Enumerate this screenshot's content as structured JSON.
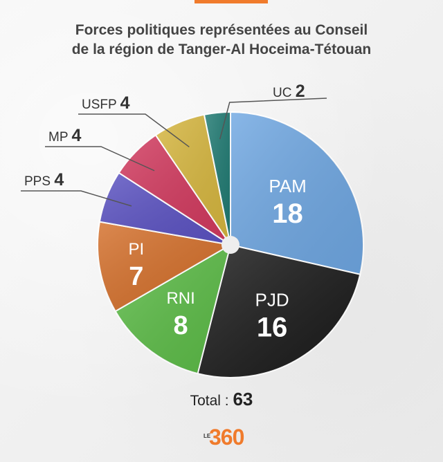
{
  "title": {
    "line1": "Forces politiques représentées au Conseil",
    "line2": "de la région de Tanger-Al Hoceima-Tétouan"
  },
  "total": {
    "label": "Total :",
    "value": "63"
  },
  "logo": {
    "prefix": "LE",
    "text": "360"
  },
  "colors": {
    "accent": "#f07b2c",
    "PAM": "#6fa7e2",
    "PJD": "#1b1b1b",
    "RNI": "#5cbc47",
    "PI": "#d46f2a",
    "PPS": "#5b52c2",
    "MP": "#d2395e",
    "USFP": "#d6b63e",
    "UC": "#1f7a72"
  },
  "chart_data": {
    "type": "pie",
    "title": "Forces politiques représentées au Conseil de la région de Tanger-Al Hoceima-Tétouan",
    "slices": [
      {
        "label": "PAM",
        "value": 18
      },
      {
        "label": "PJD",
        "value": 16
      },
      {
        "label": "RNI",
        "value": 8
      },
      {
        "label": "PI",
        "value": 7
      },
      {
        "label": "PPS",
        "value": 4
      },
      {
        "label": "MP",
        "value": 4
      },
      {
        "label": "USFP",
        "value": 4
      },
      {
        "label": "UC",
        "value": 2
      }
    ],
    "total": 63
  }
}
